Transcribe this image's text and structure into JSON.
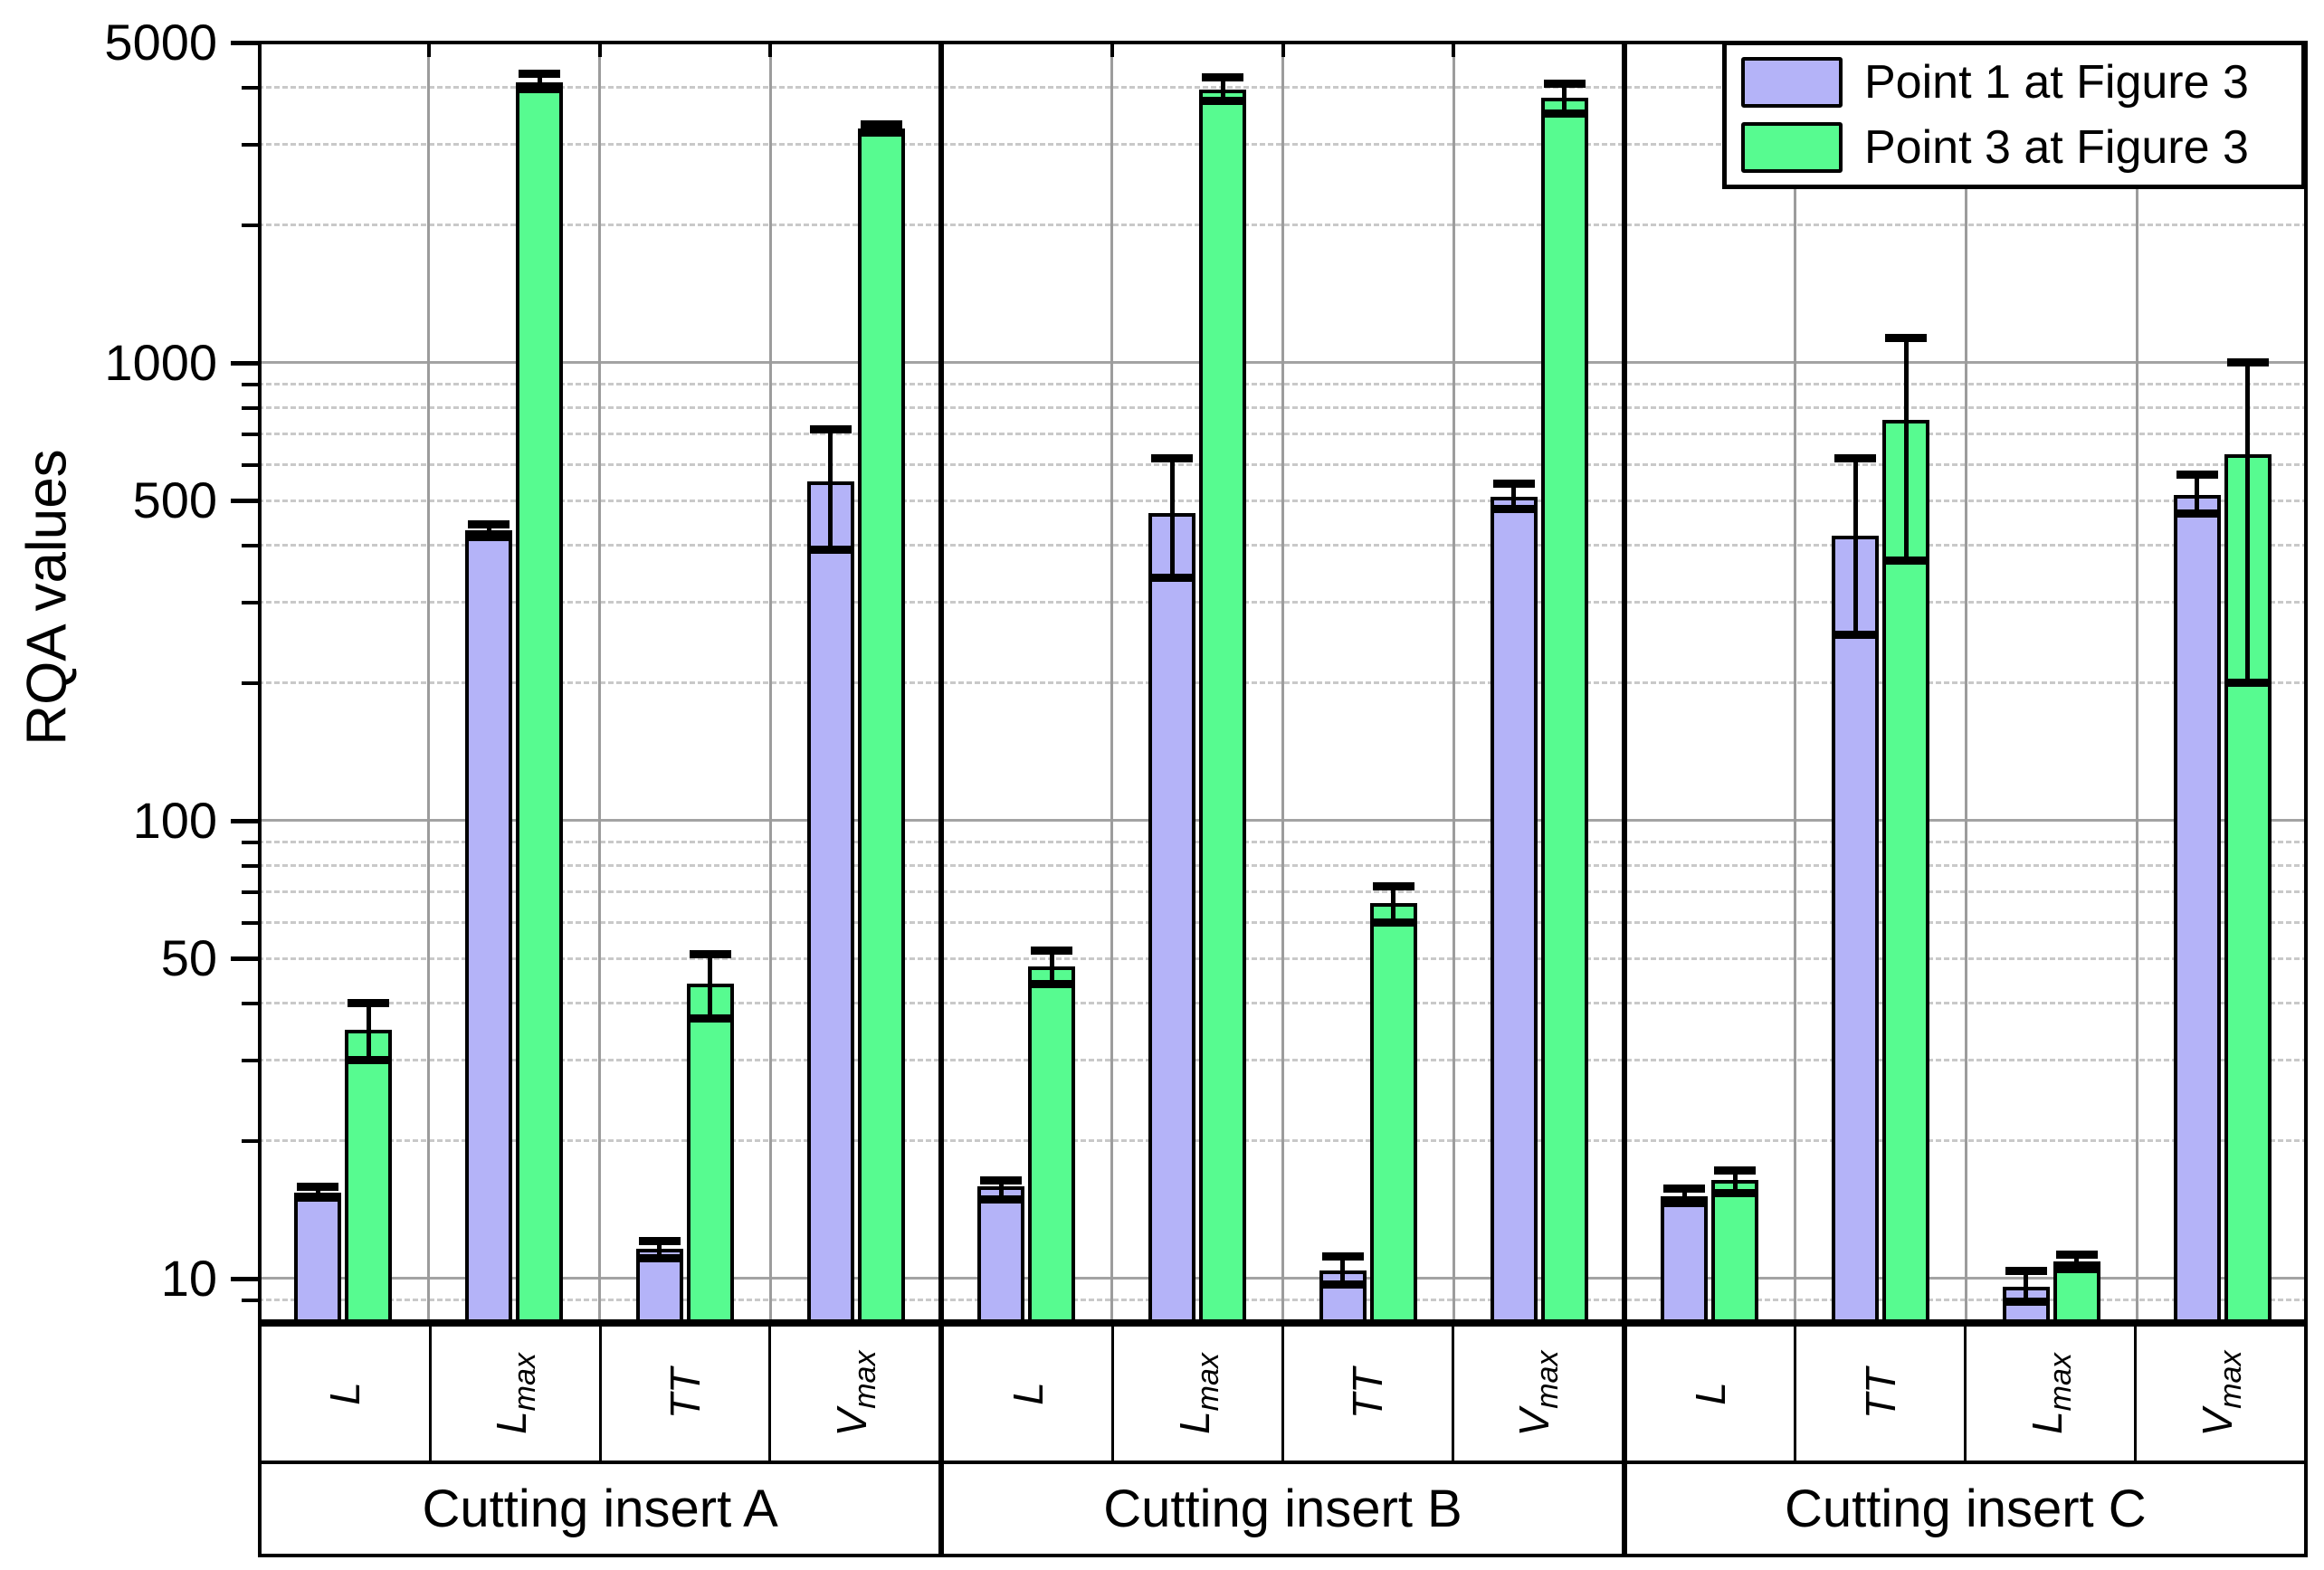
{
  "chart_data": {
    "type": "bar",
    "title": "",
    "ylabel": "RQA values",
    "xlabel": "",
    "yaxis": {
      "scale": "log",
      "min": 8,
      "max": 5000,
      "labeled_ticks": [
        5000,
        1000,
        500,
        100,
        50,
        10
      ],
      "grid": "majors solid gray, minors dashed light-gray"
    },
    "legend_position": "top-right inside plot",
    "legend": [
      {
        "label": "Point 1 at Figure 3",
        "color": "#b4b3f8"
      },
      {
        "label": "Point 3 at Figure 3",
        "color": "#57fb90"
      }
    ],
    "groups": [
      {
        "label": "Cutting insert A",
        "categories": [
          {
            "label": "L",
            "sub": "",
            "point1": {
              "value": 15.4,
              "err": [
                15.0,
                15.9
              ]
            },
            "point3": {
              "value": 35,
              "err": [
                30,
                40
              ]
            }
          },
          {
            "label": "L",
            "sub": "max",
            "point1": {
              "value": 430,
              "err": [
                417,
                444
              ]
            },
            "point3": {
              "value": 4100,
              "err": [
                3960,
                4280
              ]
            }
          },
          {
            "label": "TT",
            "sub": "",
            "point1": {
              "value": 11.6,
              "err": [
                11.1,
                12.1
              ]
            },
            "point3": {
              "value": 44,
              "err": [
                37,
                51
              ]
            }
          },
          {
            "label": "V",
            "sub": "max",
            "point1": {
              "value": 550,
              "err": [
                390,
                715
              ]
            },
            "point3": {
              "value": 3250,
              "err": [
                3190,
                3310
              ]
            }
          }
        ]
      },
      {
        "label": "Cutting insert B",
        "categories": [
          {
            "label": "L",
            "sub": "",
            "point1": {
              "value": 15.9,
              "err": [
                14.9,
                16.4
              ]
            },
            "point3": {
              "value": 48,
              "err": [
                44,
                52
              ]
            }
          },
          {
            "label": "L",
            "sub": "max",
            "point1": {
              "value": 470,
              "err": [
                340,
                620
              ]
            },
            "point3": {
              "value": 3950,
              "err": [
                3740,
                4200
              ]
            }
          },
          {
            "label": "TT",
            "sub": "",
            "point1": {
              "value": 10.4,
              "err": [
                9.7,
                11.2
              ]
            },
            "point3": {
              "value": 66,
              "err": [
                60,
                72
              ]
            }
          },
          {
            "label": "V",
            "sub": "max",
            "point1": {
              "value": 510,
              "err": [
                480,
                545
              ]
            },
            "point3": {
              "value": 3800,
              "err": [
                3500,
                4070
              ]
            }
          }
        ]
      },
      {
        "label": "Cutting insert C",
        "categories": [
          {
            "label": "L",
            "sub": "",
            "point1": {
              "value": 15.1,
              "err": [
                14.6,
                15.7
              ]
            },
            "point3": {
              "value": 16.4,
              "err": [
                15.4,
                17.2
              ]
            }
          },
          {
            "label": "TT",
            "sub": "",
            "point1": {
              "value": 420,
              "err": [
                255,
                620
              ]
            },
            "point3": {
              "value": 750,
              "err": [
                370,
                1135
              ]
            }
          },
          {
            "label": "L",
            "sub": "max",
            "point1": {
              "value": 9.6,
              "err": [
                8.9,
                10.4
              ]
            },
            "point3": {
              "value": 10.9,
              "err": [
                10.5,
                11.3
              ]
            }
          },
          {
            "label": "V",
            "sub": "max",
            "point1": {
              "value": 515,
              "err": [
                468,
                571
              ]
            },
            "point3": {
              "value": 630,
              "err": [
                200,
                1000
              ]
            }
          }
        ]
      }
    ]
  },
  "colors": {
    "point1_fill": "#b4b3f8",
    "point3_fill": "#57fb90",
    "bar_outline": "#000000",
    "grid_major": "#a3a3a3",
    "grid_minor": "#c9c9c9",
    "cell_separator": "#9c9c9c",
    "group_separator": "#000000",
    "background": "#ffffff"
  }
}
